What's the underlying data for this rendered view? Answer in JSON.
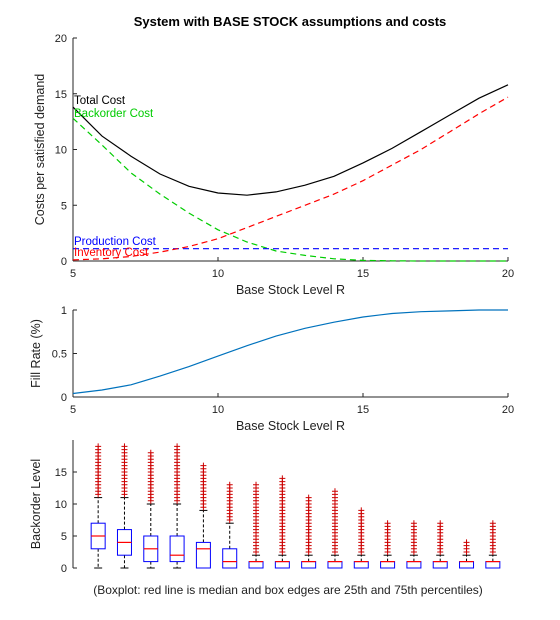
{
  "figure_title": "System with BASE STOCK assumptions and costs",
  "caption": "(Boxplot: red line is median and box edges are 25th and 75th percentiles)",
  "colors": {
    "total": "#000000",
    "backorder": "#00cc00",
    "production": "#0000ff",
    "inventory": "#ff0000",
    "fill_rate": "#0072bd",
    "box": "#0000ff",
    "median": "#ff0000",
    "outlier": "#cc0000",
    "whisker": "#000000"
  },
  "chart_data": [
    {
      "type": "line",
      "xlabel": "Base Stock Level R",
      "ylabel": "Costs per satisfied demand",
      "xlim": [
        5,
        20
      ],
      "ylim": [
        0,
        20
      ],
      "xticks": [
        5,
        10,
        15,
        20
      ],
      "yticks": [
        0,
        5,
        10,
        15,
        20
      ],
      "grid": false,
      "x": [
        5,
        6,
        7,
        8,
        9,
        10,
        11,
        12,
        13,
        14,
        15,
        16,
        17,
        18,
        19,
        20
      ],
      "series": [
        {
          "name": "Total Cost",
          "color_key": "total",
          "dash": "solid",
          "values": [
            13.8,
            11.2,
            9.4,
            7.8,
            6.7,
            6.1,
            5.9,
            6.2,
            6.8,
            7.6,
            8.8,
            10.1,
            11.6,
            13.1,
            14.6,
            15.8
          ]
        },
        {
          "name": "Backorder Cost",
          "color_key": "backorder",
          "dash": "dashed",
          "values": [
            12.8,
            10.4,
            7.9,
            6.0,
            4.3,
            2.8,
            1.7,
            0.9,
            0.5,
            0.2,
            0.05,
            0.02,
            0,
            0,
            0,
            0
          ]
        },
        {
          "name": "Production Cost",
          "color_key": "production",
          "dash": "dashed",
          "values": [
            1.1,
            1.1,
            1.1,
            1.1,
            1.1,
            1.1,
            1.1,
            1.1,
            1.1,
            1.1,
            1.1,
            1.1,
            1.1,
            1.1,
            1.1,
            1.1
          ]
        },
        {
          "name": "Inventory Cost",
          "color_key": "inventory",
          "dash": "dashed",
          "values": [
            0.1,
            0.2,
            0.4,
            0.8,
            1.3,
            2.0,
            3.0,
            4.0,
            5.0,
            6.0,
            7.2,
            8.6,
            10.0,
            11.6,
            13.2,
            14.7
          ]
        }
      ]
    },
    {
      "type": "line",
      "xlabel": "Base Stock Level R",
      "ylabel": "Fill Rate (%)",
      "xlim": [
        5,
        20
      ],
      "ylim": [
        0,
        1
      ],
      "xticks": [
        5,
        10,
        15,
        20
      ],
      "yticks": [
        0,
        0.5,
        1
      ],
      "grid": false,
      "x": [
        5,
        6,
        7,
        8,
        9,
        10,
        11,
        12,
        13,
        14,
        15,
        16,
        17,
        18,
        19,
        20
      ],
      "series": [
        {
          "color_key": "fill_rate",
          "dash": "solid",
          "values": [
            0.04,
            0.08,
            0.14,
            0.24,
            0.35,
            0.47,
            0.59,
            0.7,
            0.79,
            0.86,
            0.92,
            0.96,
            0.98,
            0.99,
            1.0,
            1.0
          ]
        }
      ]
    },
    {
      "type": "boxplot",
      "ylabel": "Backorder Level",
      "ylim": [
        0,
        20
      ],
      "yticks": [
        0,
        5,
        10,
        15
      ],
      "grid": false,
      "boxes": [
        {
          "q1": 3,
          "median": 5,
          "q3": 7,
          "whisker_low": 0,
          "whisker_high": 11,
          "outlier_max": 19
        },
        {
          "q1": 2,
          "median": 4,
          "q3": 6,
          "whisker_low": 0,
          "whisker_high": 11,
          "outlier_max": 19
        },
        {
          "q1": 1,
          "median": 3,
          "q3": 5,
          "whisker_low": 0,
          "whisker_high": 10,
          "outlier_max": 18
        },
        {
          "q1": 1,
          "median": 2,
          "q3": 5,
          "whisker_low": 0,
          "whisker_high": 10,
          "outlier_max": 19
        },
        {
          "q1": 0,
          "median": 3,
          "q3": 4,
          "whisker_low": 0,
          "whisker_high": 9,
          "outlier_max": 16
        },
        {
          "q1": 0,
          "median": 1,
          "q3": 3,
          "whisker_low": 0,
          "whisker_high": 7,
          "outlier_max": 13
        },
        {
          "q1": 0,
          "median": 1,
          "q3": 1,
          "whisker_low": 0,
          "whisker_high": 2,
          "outlier_max": 13
        },
        {
          "q1": 0,
          "median": 1,
          "q3": 1,
          "whisker_low": 0,
          "whisker_high": 2,
          "outlier_max": 14
        },
        {
          "q1": 0,
          "median": 1,
          "q3": 1,
          "whisker_low": 0,
          "whisker_high": 2,
          "outlier_max": 11
        },
        {
          "q1": 0,
          "median": 1,
          "q3": 1,
          "whisker_low": 0,
          "whisker_high": 2,
          "outlier_max": 12
        },
        {
          "q1": 0,
          "median": 1,
          "q3": 1,
          "whisker_low": 0,
          "whisker_high": 2,
          "outlier_max": 9
        },
        {
          "q1": 0,
          "median": 1,
          "q3": 1,
          "whisker_low": 0,
          "whisker_high": 2,
          "outlier_max": 7
        },
        {
          "q1": 0,
          "median": 1,
          "q3": 1,
          "whisker_low": 0,
          "whisker_high": 2,
          "outlier_max": 7
        },
        {
          "q1": 0,
          "median": 1,
          "q3": 1,
          "whisker_low": 0,
          "whisker_high": 2,
          "outlier_max": 7
        },
        {
          "q1": 0,
          "median": 1,
          "q3": 1,
          "whisker_low": 0,
          "whisker_high": 2,
          "outlier_max": 4
        },
        {
          "q1": 0,
          "median": 1,
          "q3": 1,
          "whisker_low": 0,
          "whisker_high": 2,
          "outlier_max": 7
        }
      ]
    }
  ]
}
